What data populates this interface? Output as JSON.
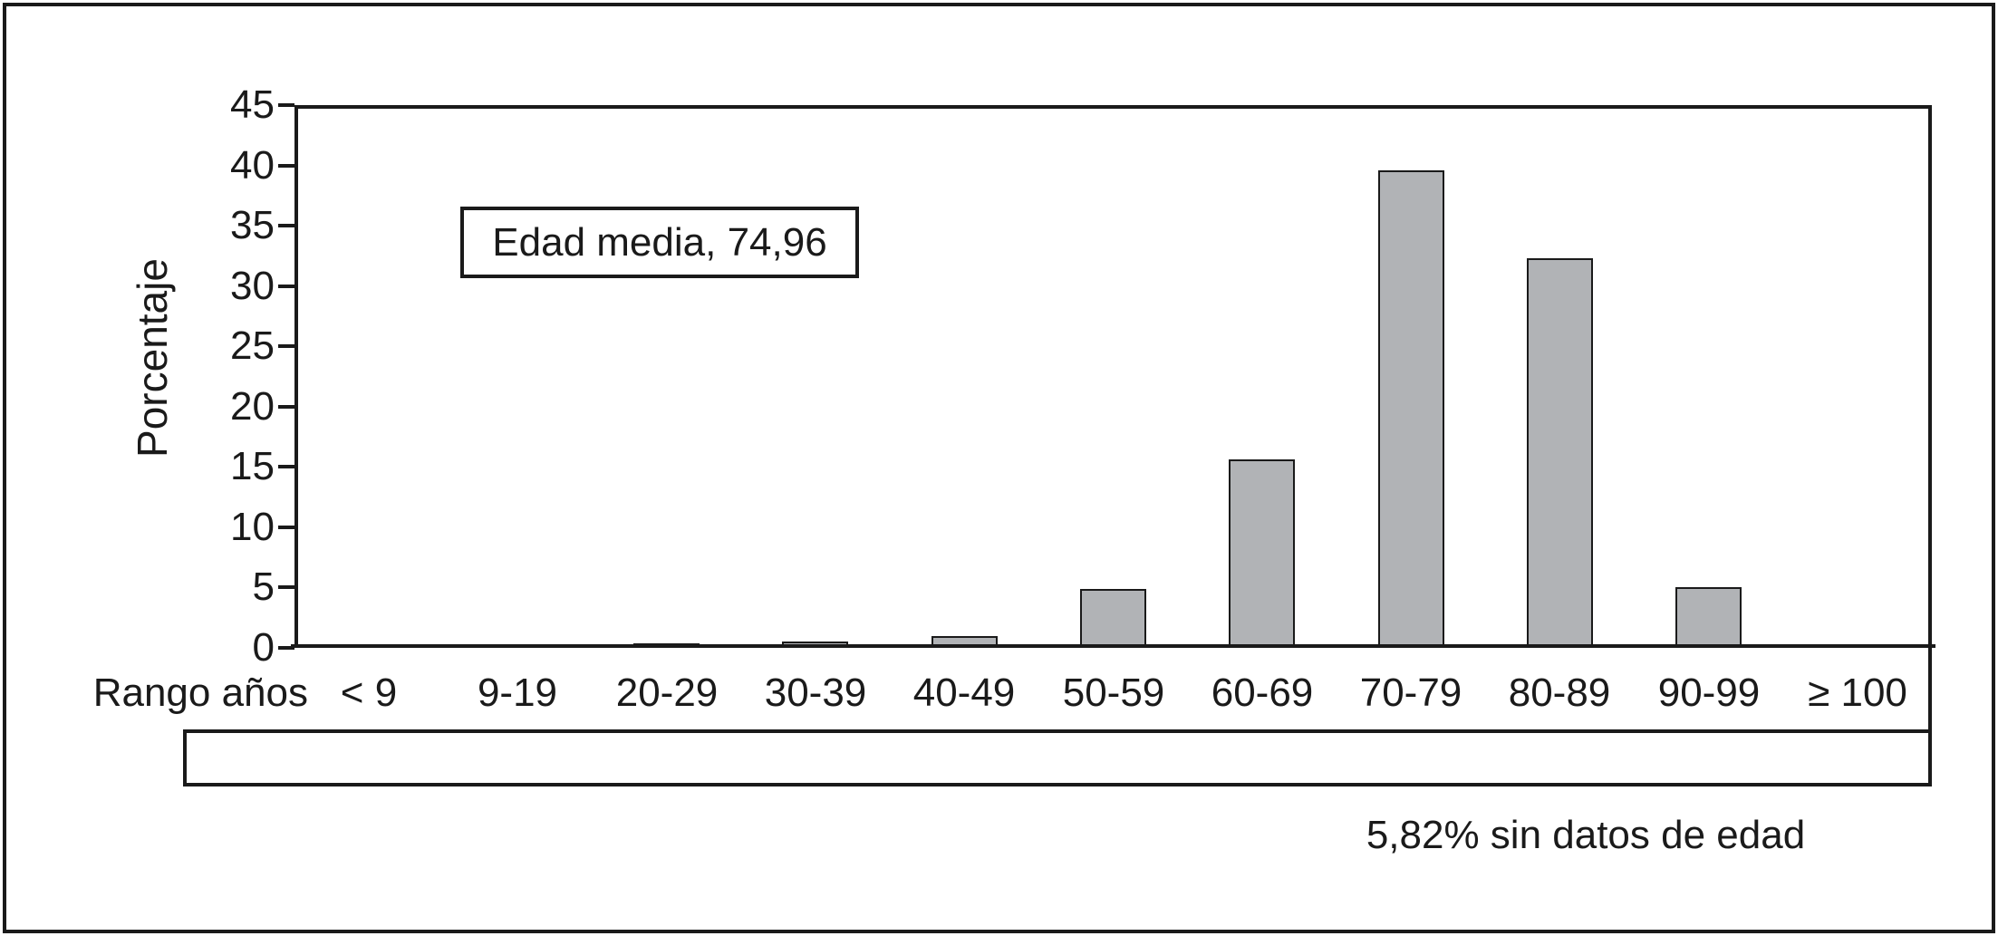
{
  "figure": {
    "y_axis_title": "Porcentaje",
    "x_row_title": "Rango años",
    "legend_label": "%",
    "annotation": "Edad media, 74,96",
    "footnote": "5,82% sin datos de edad"
  },
  "chart_data": {
    "type": "bar",
    "title": "",
    "xlabel": "Rango años",
    "ylabel": "Porcentaje",
    "categories": [
      "< 9",
      "9-19",
      "20-29",
      "30-39",
      "40-49",
      "50-59",
      "60-69",
      "70-79",
      "80-89",
      "90-99",
      "≥ 100"
    ],
    "values": [
      0.33,
      0.14,
      0.37,
      0.51,
      0.99,
      4.92,
      15.65,
      39.6,
      32.28,
      5.06,
      0.14
    ],
    "values_display": [
      "0,33",
      "0,14",
      "0,37",
      "0,51",
      "0,99",
      "4,92",
      "15,65",
      "39,6",
      "32,28",
      "5,06",
      "0,14"
    ],
    "y_ticks": [
      45,
      40,
      35,
      30,
      25,
      20,
      15,
      10,
      5,
      0
    ],
    "ylim": [
      0,
      45
    ],
    "grid": false,
    "legend_entry": "%",
    "legend_position": "table-row-left",
    "annotation": "Edad media, 74,96",
    "footnote": "5,82% sin datos de edad",
    "bar_color": "#b1b3b6",
    "line_color": "#1a1a1a",
    "background_color": "#ffffff"
  }
}
